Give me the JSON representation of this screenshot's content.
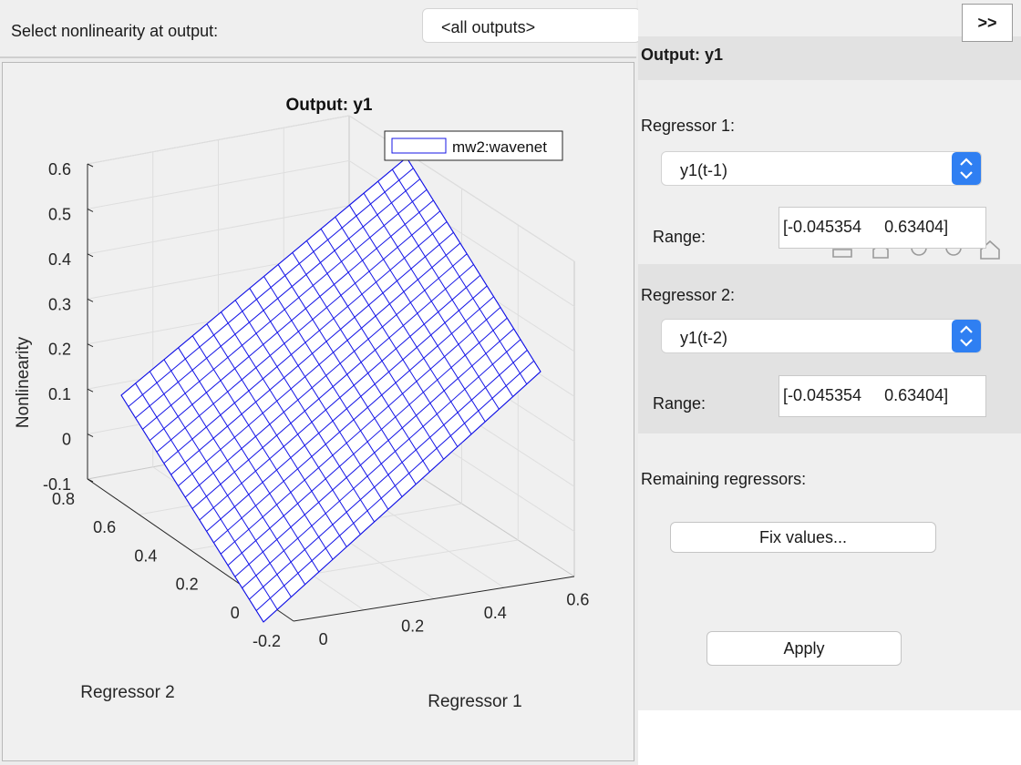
{
  "toolbar": {
    "select_label": "Select nonlinearity at output:",
    "output_select_value": "<all outputs>"
  },
  "side_panel": {
    "expand_label": ">>",
    "output_header": "Output: y1",
    "regressor1": {
      "label": "Regressor 1:",
      "value": "y1(t-1)",
      "range_label": "Range:",
      "range_value": "[-0.045354     0.63404]"
    },
    "regressor2": {
      "label": "Regressor 2:",
      "value": "y1(t-2)",
      "range_label": "Range:",
      "range_value": "[-0.045354     0.63404]"
    },
    "remaining_label": "Remaining regressors:",
    "fix_values_label": "Fix values...",
    "apply_label": "Apply",
    "accent_color": "#2f7ff2"
  },
  "chart_data": {
    "type": "surface",
    "title": "Output: y1",
    "xlabel": "Regressor 1",
    "ylabel": "Regressor 2",
    "zlabel": "Nonlinearity",
    "legend": [
      "mw2:wavenet"
    ],
    "legend_position": "top-right",
    "mesh_color": "#1414e6",
    "grid": true,
    "xlim": [
      -0.045354,
      0.63404
    ],
    "ylim": [
      -0.045354,
      0.63404
    ],
    "zlim": [
      -0.1,
      0.6
    ],
    "x_ticks": [
      "0",
      "0.2",
      "0.4",
      "0.6"
    ],
    "y_ticks": [
      "-0.2",
      "0",
      "0.2",
      "0.4",
      "0.6",
      "0.8"
    ],
    "z_ticks": [
      "-0.1",
      "0",
      "0.1",
      "0.2",
      "0.3",
      "0.4",
      "0.5",
      "0.6"
    ],
    "mesh_divisions": 20,
    "surface_corners": [
      {
        "x1": -0.045354,
        "x2": 0.63404,
        "z": 0.22
      },
      {
        "x1": 0.63404,
        "x2": 0.63404,
        "z": 0.6
      },
      {
        "x1": -0.045354,
        "x2": -0.045354,
        "z": -0.06
      },
      {
        "x1": 0.63404,
        "x2": -0.045354,
        "z": 0.33
      }
    ]
  }
}
